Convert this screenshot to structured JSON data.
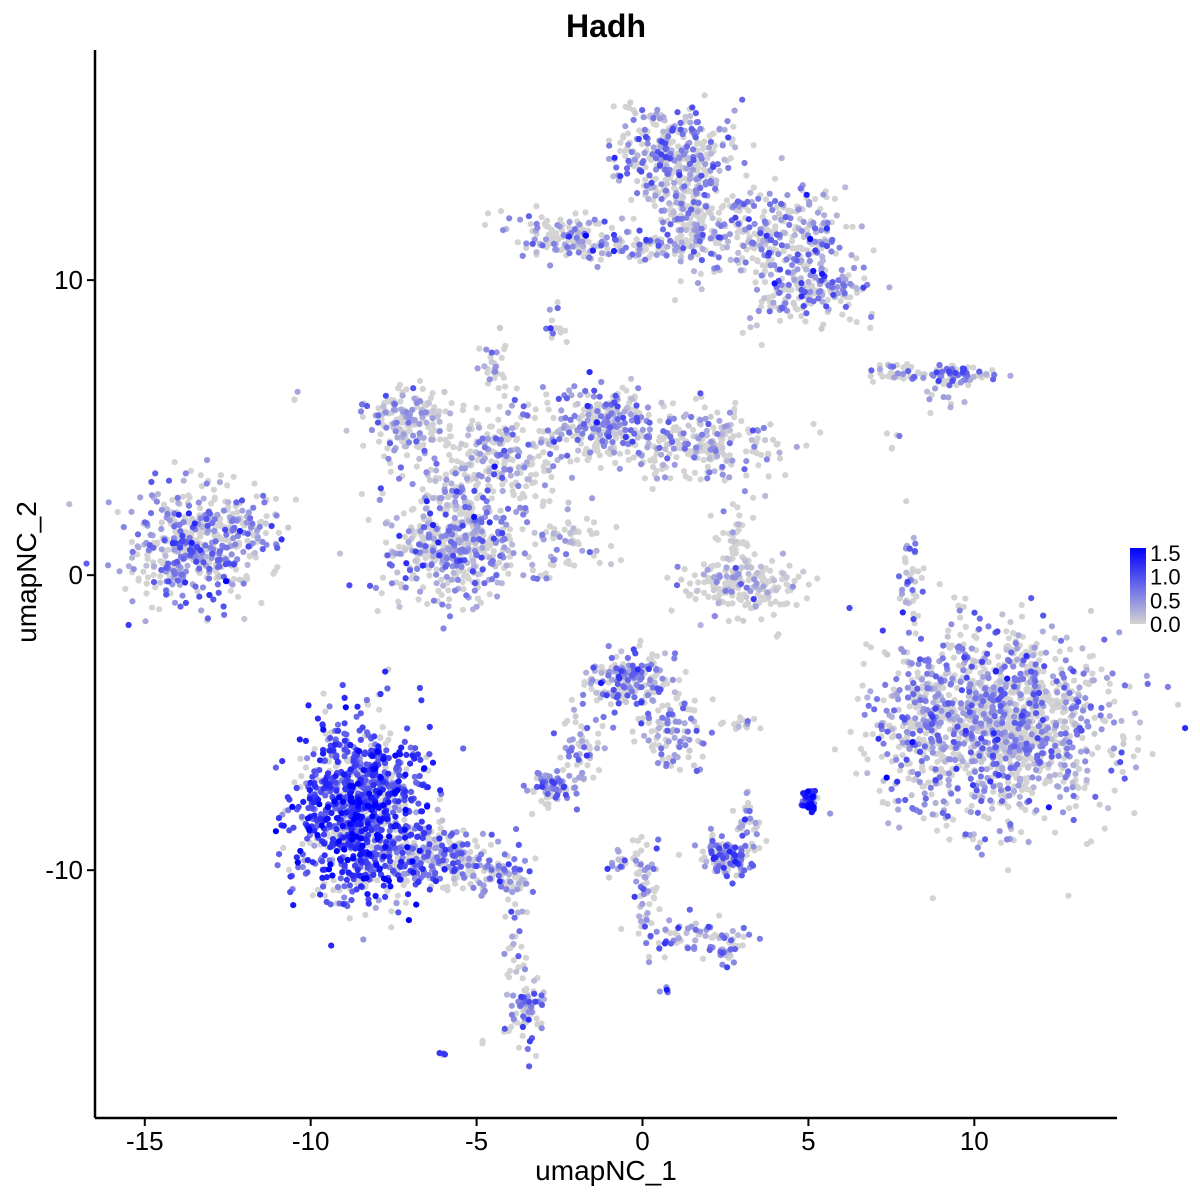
{
  "chart_data": {
    "type": "scatter",
    "title": "Hadh",
    "xlabel": "umapNC_1",
    "ylabel": "umapNC_2",
    "xlim": [
      -16.5,
      14.3
    ],
    "ylim": [
      -18.4,
      17.8
    ],
    "x_ticks": [
      -15,
      -10,
      -5,
      0,
      5,
      10
    ],
    "x_tick_labels": [
      "-15",
      "-10",
      "-5",
      "0",
      "5",
      "10"
    ],
    "y_ticks": [
      -10,
      0,
      10
    ],
    "y_tick_labels": [
      "-10",
      "0",
      "10"
    ],
    "grid": false,
    "legend": {
      "placement": "right",
      "type": "colorbar",
      "range": [
        0,
        1.6
      ],
      "ticks": [
        0.0,
        0.5,
        1.0,
        1.5
      ],
      "tick_labels": [
        "0.0",
        "0.5",
        "1.0",
        "1.5"
      ],
      "low_color": "#d3d3d3",
      "high_color": "#0000ff"
    },
    "expression_color_low": "#d3d3d3",
    "expression_color_high": "#0000ff",
    "clusters": [
      {
        "cx": -13.5,
        "cy": 1.0,
        "sx": 0.9,
        "sy": 1.0,
        "n": 420,
        "expr": 0.55
      },
      {
        "cx": -12.0,
        "cy": 1.6,
        "sx": 0.5,
        "sy": 0.6,
        "n": 90,
        "expr": 0.5
      },
      {
        "cx": -8.5,
        "cy": -8.0,
        "sx": 1.0,
        "sy": 1.5,
        "n": 1100,
        "expr": 1.05
      },
      {
        "cx": -6.2,
        "cy": -9.6,
        "sx": 1.0,
        "sy": 0.5,
        "n": 260,
        "expr": 0.6
      },
      {
        "cx": -4.3,
        "cy": -10.4,
        "sx": 0.5,
        "sy": 0.3,
        "n": 60,
        "expr": 0.5
      },
      {
        "cx": -3.5,
        "cy": -14.8,
        "sx": 0.25,
        "sy": 0.6,
        "n": 70,
        "expr": 0.55
      },
      {
        "cx": -3.9,
        "cy": -12.5,
        "sx": 0.15,
        "sy": 0.9,
        "n": 30,
        "expr": 0.35
      },
      {
        "cx": -5.6,
        "cy": 1.0,
        "sx": 1.0,
        "sy": 0.9,
        "n": 480,
        "expr": 0.45
      },
      {
        "cx": -7.1,
        "cy": 5.3,
        "sx": 0.7,
        "sy": 0.6,
        "n": 160,
        "expr": 0.35
      },
      {
        "cx": -4.4,
        "cy": 3.8,
        "sx": 1.2,
        "sy": 1.0,
        "n": 300,
        "expr": 0.3
      },
      {
        "cx": -4.5,
        "cy": 7.0,
        "sx": 0.15,
        "sy": 0.5,
        "n": 30,
        "expr": 0.3
      },
      {
        "cx": -1.2,
        "cy": 5.2,
        "sx": 0.7,
        "sy": 0.6,
        "n": 210,
        "expr": 0.5
      },
      {
        "cx": 1.5,
        "cy": 4.4,
        "sx": 1.3,
        "sy": 0.6,
        "n": 260,
        "expr": 0.3
      },
      {
        "cx": -2.2,
        "cy": 1.3,
        "sx": 0.6,
        "sy": 0.5,
        "n": 60,
        "expr": 0.2
      },
      {
        "cx": 0.9,
        "cy": 14.2,
        "sx": 0.9,
        "sy": 0.9,
        "n": 350,
        "expr": 0.5
      },
      {
        "cx": 1.5,
        "cy": 12.3,
        "sx": 0.5,
        "sy": 1.0,
        "n": 130,
        "expr": 0.4
      },
      {
        "cx": 4.0,
        "cy": 11.6,
        "sx": 1.1,
        "sy": 0.8,
        "n": 300,
        "expr": 0.5
      },
      {
        "cx": 5.5,
        "cy": 9.7,
        "sx": 0.6,
        "sy": 0.5,
        "n": 110,
        "expr": 0.55
      },
      {
        "cx": -2.2,
        "cy": 11.5,
        "sx": 0.9,
        "sy": 0.4,
        "n": 150,
        "expr": 0.45
      },
      {
        "cx": 0.5,
        "cy": 11.1,
        "sx": 1.0,
        "sy": 0.2,
        "n": 80,
        "expr": 0.4
      },
      {
        "cx": 4.3,
        "cy": 9.4,
        "sx": 0.5,
        "sy": 0.6,
        "n": 60,
        "expr": 0.45
      },
      {
        "cx": -2.7,
        "cy": 8.6,
        "sx": 0.2,
        "sy": 0.3,
        "n": 15,
        "expr": 0.4
      },
      {
        "cx": 9.5,
        "cy": 6.8,
        "sx": 0.6,
        "sy": 0.2,
        "n": 60,
        "expr": 0.65
      },
      {
        "cx": 7.6,
        "cy": 6.9,
        "sx": 0.5,
        "sy": 0.15,
        "n": 35,
        "expr": 0.45
      },
      {
        "cx": 9.2,
        "cy": 6.2,
        "sx": 0.3,
        "sy": 0.4,
        "n": 15,
        "expr": 0.4
      },
      {
        "cx": 3.0,
        "cy": -0.4,
        "sx": 0.9,
        "sy": 0.4,
        "n": 170,
        "expr": 0.08
      },
      {
        "cx": 2.8,
        "cy": 0.8,
        "sx": 0.3,
        "sy": 0.8,
        "n": 60,
        "expr": 0.1
      },
      {
        "cx": 8.1,
        "cy": -0.2,
        "sx": 0.2,
        "sy": 0.9,
        "n": 40,
        "expr": 0.4
      },
      {
        "cx": 10.6,
        "cy": -5.0,
        "sx": 1.7,
        "sy": 1.6,
        "n": 1400,
        "expr": 0.45
      },
      {
        "cx": 8.4,
        "cy": -5.0,
        "sx": 0.4,
        "sy": 0.6,
        "n": 80,
        "expr": 0.4
      },
      {
        "cx": -0.4,
        "cy": -3.6,
        "sx": 0.6,
        "sy": 0.5,
        "n": 180,
        "expr": 0.55
      },
      {
        "cx": 0.9,
        "cy": -5.2,
        "sx": 0.5,
        "sy": 0.7,
        "n": 100,
        "expr": 0.45
      },
      {
        "cx": -1.8,
        "cy": -5.8,
        "sx": 0.3,
        "sy": 0.7,
        "n": 50,
        "expr": 0.45
      },
      {
        "cx": -2.6,
        "cy": -7.2,
        "sx": 0.4,
        "sy": 0.3,
        "n": 80,
        "expr": 0.6
      },
      {
        "cx": 2.5,
        "cy": -9.5,
        "sx": 0.4,
        "sy": 0.3,
        "n": 120,
        "expr": 0.75
      },
      {
        "cx": 3.2,
        "cy": -8.4,
        "sx": 0.2,
        "sy": 0.4,
        "n": 30,
        "expr": 0.5
      },
      {
        "cx": 5.0,
        "cy": -7.6,
        "sx": 0.12,
        "sy": 0.2,
        "n": 40,
        "expr": 1.25
      },
      {
        "cx": 0.1,
        "cy": -10.5,
        "sx": 0.2,
        "sy": 0.9,
        "n": 60,
        "expr": 0.45
      },
      {
        "cx": -0.7,
        "cy": -9.7,
        "sx": 0.15,
        "sy": 0.3,
        "n": 15,
        "expr": 0.35
      },
      {
        "cx": 1.4,
        "cy": -12.1,
        "sx": 0.8,
        "sy": 0.3,
        "n": 50,
        "expr": 0.45
      },
      {
        "cx": 2.4,
        "cy": -12.6,
        "sx": 0.3,
        "sy": 0.3,
        "n": 40,
        "expr": 0.5
      },
      {
        "cx": 2.9,
        "cy": -5.0,
        "sx": 0.3,
        "sy": 0.1,
        "n": 15,
        "expr": 0.35
      },
      {
        "cx": 0.7,
        "cy": -14.0,
        "sx": 0.1,
        "sy": 0.1,
        "n": 5,
        "expr": 0.5
      },
      {
        "cx": -6.0,
        "cy": -16.2,
        "sx": 0.1,
        "sy": 0.1,
        "n": 4,
        "expr": 0.6
      },
      {
        "cx": -10.5,
        "cy": 6.0,
        "sx": 0.06,
        "sy": 0.1,
        "n": 3,
        "expr": 0.6
      },
      {
        "cx": 7.5,
        "cy": 4.7,
        "sx": 0.2,
        "sy": 0.15,
        "n": 5,
        "expr": 0.0
      },
      {
        "cx": 4.1,
        "cy": -2.0,
        "sx": 0.05,
        "sy": 0.05,
        "n": 2,
        "expr": 0.0
      },
      {
        "cx": -4.8,
        "cy": -15.8,
        "sx": 0.05,
        "sy": 0.05,
        "n": 2,
        "expr": 0.0
      }
    ]
  }
}
